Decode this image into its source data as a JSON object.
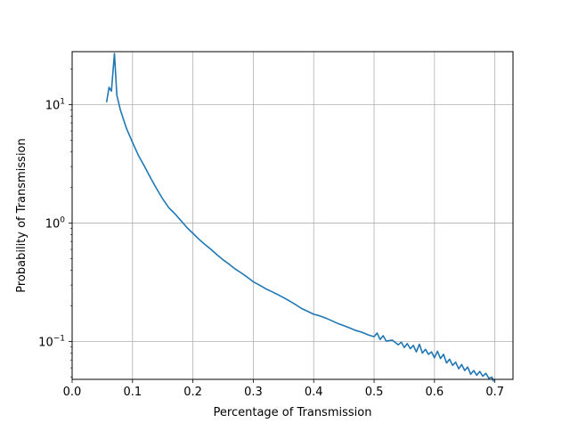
{
  "chart_data": {
    "type": "line",
    "title": "",
    "xlabel": "Percentage of Transmission",
    "ylabel": "Probability of Transmission",
    "xlim": [
      0.0,
      0.73
    ],
    "ylim": [
      0.048,
      28
    ],
    "yscale": "log",
    "grid": true,
    "x_ticks": [
      {
        "value": 0.0,
        "label": "0.0"
      },
      {
        "value": 0.1,
        "label": "0.1"
      },
      {
        "value": 0.2,
        "label": "0.2"
      },
      {
        "value": 0.3,
        "label": "0.3"
      },
      {
        "value": 0.4,
        "label": "0.4"
      },
      {
        "value": 0.5,
        "label": "0.5"
      },
      {
        "value": 0.6,
        "label": "0.6"
      },
      {
        "value": 0.7,
        "label": "0.7"
      }
    ],
    "y_ticks": [
      {
        "value": 0.1,
        "base": "10",
        "exp": "−1"
      },
      {
        "value": 1,
        "base": "10",
        "exp": "0"
      },
      {
        "value": 10,
        "base": "10",
        "exp": "1"
      }
    ],
    "series": [
      {
        "color": "#1f77b4",
        "x": [
          0.057,
          0.061,
          0.065,
          0.07,
          0.074,
          0.08,
          0.09,
          0.1,
          0.11,
          0.12,
          0.13,
          0.14,
          0.15,
          0.16,
          0.17,
          0.18,
          0.19,
          0.2,
          0.21,
          0.22,
          0.23,
          0.24,
          0.25,
          0.26,
          0.27,
          0.28,
          0.29,
          0.3,
          0.31,
          0.32,
          0.33,
          0.34,
          0.35,
          0.36,
          0.37,
          0.38,
          0.39,
          0.4,
          0.41,
          0.42,
          0.43,
          0.44,
          0.45,
          0.46,
          0.47,
          0.48,
          0.49,
          0.5,
          0.505,
          0.51,
          0.515,
          0.52,
          0.53,
          0.54,
          0.545,
          0.55,
          0.555,
          0.56,
          0.565,
          0.57,
          0.575,
          0.58,
          0.585,
          0.59,
          0.595,
          0.6,
          0.605,
          0.61,
          0.615,
          0.62,
          0.625,
          0.63,
          0.635,
          0.64,
          0.645,
          0.65,
          0.655,
          0.66,
          0.665,
          0.67,
          0.675,
          0.68,
          0.685,
          0.69,
          0.695,
          0.698
        ],
        "y": [
          10.5,
          14.0,
          13.0,
          27.0,
          12.0,
          9.0,
          6.3,
          4.8,
          3.7,
          3.0,
          2.4,
          1.95,
          1.6,
          1.35,
          1.2,
          1.05,
          0.92,
          0.82,
          0.73,
          0.66,
          0.6,
          0.54,
          0.49,
          0.45,
          0.41,
          0.38,
          0.35,
          0.32,
          0.3,
          0.28,
          0.265,
          0.25,
          0.235,
          0.22,
          0.205,
          0.19,
          0.18,
          0.17,
          0.165,
          0.158,
          0.15,
          0.142,
          0.136,
          0.13,
          0.124,
          0.12,
          0.114,
          0.11,
          0.118,
          0.104,
          0.112,
          0.101,
          0.103,
          0.094,
          0.099,
          0.089,
          0.096,
          0.087,
          0.093,
          0.082,
          0.095,
          0.08,
          0.086,
          0.078,
          0.082,
          0.073,
          0.083,
          0.072,
          0.078,
          0.066,
          0.071,
          0.063,
          0.067,
          0.059,
          0.064,
          0.057,
          0.061,
          0.053,
          0.057,
          0.052,
          0.056,
          0.051,
          0.054,
          0.049,
          0.05,
          0.046
        ]
      }
    ]
  }
}
